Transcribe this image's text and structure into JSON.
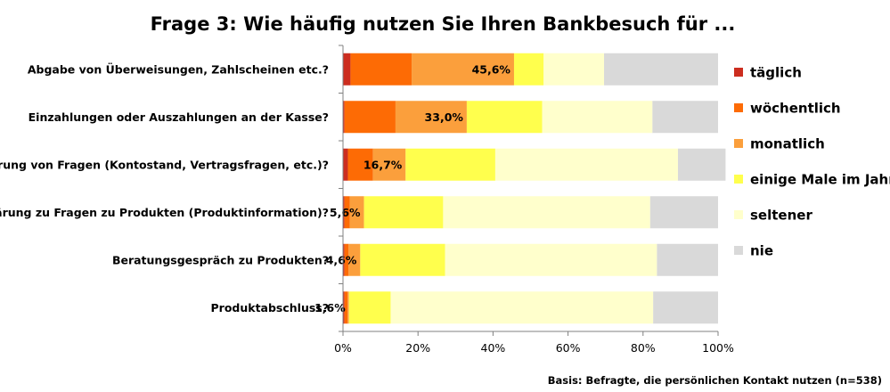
{
  "chart_data": {
    "type": "bar",
    "orientation": "horizontal",
    "stacked": "percent",
    "title": "Frage 3: Wie häufig nutzen Sie Ihren Bankbesuch für ...",
    "categories": [
      "Abgabe von Überweisungen, Zahlscheinen etc.?",
      "Einzahlungen oder Auszahlungen an der Kasse?",
      "Klärung von Fragen (Kontostand, Vertragsfragen, etc.)?",
      "Klärung zu Fragen zu Produkten (Produktinformation)?",
      "Beratungsgespräch zu Produkten?",
      "Produktabschluss?"
    ],
    "series": [
      {
        "name": "täglich",
        "color": "#cc2d1f",
        "values": [
          2.0,
          0.4,
          1.3,
          0.4,
          0.4,
          0.4
        ]
      },
      {
        "name": "wöchentlich",
        "color": "#fd6b05",
        "values": [
          16.3,
          13.6,
          6.7,
          1.4,
          1.1,
          0.8
        ]
      },
      {
        "name": "monatlich",
        "color": "#fb9f3c",
        "values": [
          27.3,
          19.0,
          8.7,
          3.8,
          3.1,
          0.4
        ]
      },
      {
        "name": "einige Male im Jahr",
        "color": "#ffff4d",
        "values": [
          7.9,
          20.1,
          23.9,
          21.1,
          22.6,
          11.1
        ]
      },
      {
        "name": "seltener",
        "color": "#ffffcc",
        "values": [
          16.1,
          29.4,
          48.7,
          55.2,
          56.5,
          70.0
        ]
      },
      {
        "name": "nie",
        "color": "#d9d9d9",
        "values": [
          30.4,
          17.5,
          12.7,
          18.1,
          16.3,
          17.3
        ]
      }
    ],
    "data_labels": [
      "45,6%",
      "33,0%",
      "16,7%",
      "5,6%",
      "4,6%",
      "1,6%"
    ],
    "xticks": [
      "0%",
      "20%",
      "40%",
      "60%",
      "80%",
      "100%"
    ],
    "xlim": [
      0,
      100
    ],
    "grid": false,
    "legend_position": "right",
    "footnote": "Basis: Befragte, die persönlichen Kontakt nutzen (n=538)"
  }
}
